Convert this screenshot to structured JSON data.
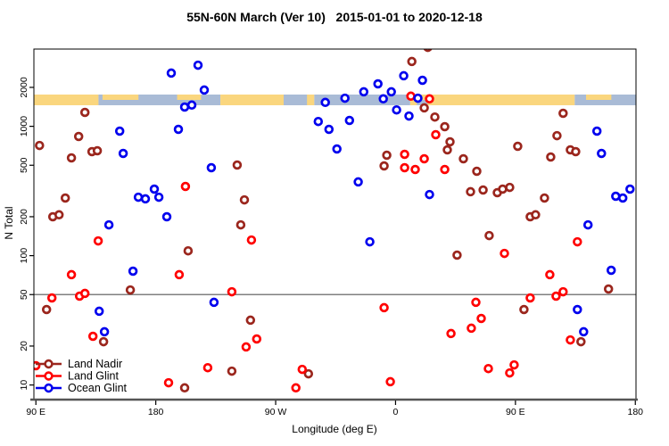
{
  "chart_data": {
    "type": "scatter",
    "title": "55N-60N March (Ver 10)   2015-01-01 to 2020-12-18",
    "xlabel": "Longitude (deg E)",
    "ylabel": "N Total",
    "x_axis": {
      "range": [
        -1.5,
        450.5
      ],
      "tick_positions": [
        0,
        90,
        180,
        270,
        360,
        450
      ],
      "tick_labels": [
        "90 E",
        "180",
        "90 W",
        "0",
        "90 E",
        "180"
      ],
      "note": "axis degrees measured eastward from 90E at left edge"
    },
    "y_axis": {
      "scale": "log",
      "ticks": [
        10,
        20,
        50,
        100,
        200,
        500,
        1000,
        2000
      ],
      "range": [
        7.7,
        3950
      ]
    },
    "threshold_line": {
      "value": 50,
      "color": "#7f7f7f"
    },
    "map_band": {
      "value_range": [
        1455,
        1760
      ],
      "land_color": "#FAD67E",
      "ocean_color": "#A9BBD6",
      "segments": [
        {
          "type": "land",
          "from": -1.5,
          "to": 47
        },
        {
          "type": "ocean",
          "from": 47,
          "to": 138.5
        },
        {
          "type": "land",
          "from": 138.5,
          "to": 209
        },
        {
          "type": "ocean",
          "from": 209,
          "to": 281
        },
        {
          "type": "land",
          "from": 281,
          "to": 404.5
        },
        {
          "type": "ocean",
          "from": 404.5,
          "to": 450.5
        }
      ],
      "patches": [
        {
          "type": "land",
          "from": 50,
          "to": 77,
          "part": "top"
        },
        {
          "type": "land",
          "from": 106,
          "to": 124,
          "part": "top"
        },
        {
          "type": "ocean",
          "from": 186,
          "to": 203.5,
          "part": "full"
        },
        {
          "type": "ocean",
          "from": 286,
          "to": 294,
          "part": "bottom"
        },
        {
          "type": "land",
          "from": 413,
          "to": 432,
          "part": "top"
        }
      ]
    },
    "series": [
      {
        "name": "Land Nadir",
        "color": "#9B261D",
        "points": [
          [
            2.7,
            711
          ],
          [
            36.8,
            1282
          ],
          [
            32.1,
            834
          ],
          [
            42.1,
            637
          ],
          [
            46.1,
            647
          ],
          [
            26.7,
            570
          ],
          [
            22.1,
            279
          ],
          [
            12.7,
            200
          ],
          [
            17.4,
            207
          ],
          [
            114.3,
            109
          ],
          [
            70.9,
            54.3
          ],
          [
            8.0,
            38.3
          ],
          [
            50.8,
            21.6
          ],
          [
            147.1,
            12.8
          ],
          [
            111.7,
            9.5
          ],
          [
            151.1,
            502
          ],
          [
            156.5,
            270
          ],
          [
            153.8,
            173
          ],
          [
            161.1,
            31.7
          ],
          [
            204.6,
            12.2
          ],
          [
            282.2,
            3170
          ],
          [
            294.2,
            4080
          ],
          [
            291.5,
            1390
          ],
          [
            299.5,
            1180
          ],
          [
            263.4,
            598
          ],
          [
            261.4,
            494
          ],
          [
            306.9,
            993
          ],
          [
            310.9,
            759
          ],
          [
            308.9,
            658
          ],
          [
            320.9,
            561
          ],
          [
            331.0,
            449
          ],
          [
            326.3,
            312
          ],
          [
            335.7,
            322
          ],
          [
            346.4,
            307
          ],
          [
            350.4,
            327
          ],
          [
            355.7,
            337
          ],
          [
            361.7,
            701
          ],
          [
            391.2,
            847
          ],
          [
            386.5,
            579
          ],
          [
            401.2,
            658
          ],
          [
            405.2,
            637
          ],
          [
            395.8,
            1260
          ],
          [
            381.8,
            279
          ],
          [
            371.1,
            200
          ],
          [
            375.1,
            207
          ],
          [
            340.3,
            143
          ],
          [
            316.2,
            101
          ],
          [
            429.9,
            55.2
          ],
          [
            366.4,
            38.3
          ],
          [
            409.2,
            21.6
          ]
        ]
      },
      {
        "name": "Land Glint",
        "color": "#FF0000",
        "points": [
          [
            112.3,
            343
          ],
          [
            46.8,
            130
          ],
          [
            26.7,
            71.3
          ],
          [
            107.6,
            71.3
          ],
          [
            32.8,
            48.6
          ],
          [
            36.8,
            51.1
          ],
          [
            12.0,
            47.1
          ],
          [
            42.8,
            23.8
          ],
          [
            129.0,
            13.6
          ],
          [
            99.6,
            10.4
          ],
          [
            147.1,
            52.6
          ],
          [
            161.8,
            132
          ],
          [
            261.4,
            39.6
          ],
          [
            165.8,
            22.7
          ],
          [
            157.8,
            19.7
          ],
          [
            199.9,
            13.2
          ],
          [
            195.2,
            9.5
          ],
          [
            266.1,
            10.6
          ],
          [
            281.5,
            1710
          ],
          [
            295.5,
            1630
          ],
          [
            276.8,
            607
          ],
          [
            291.5,
            561
          ],
          [
            276.8,
            479
          ],
          [
            284.8,
            464
          ],
          [
            300.2,
            861
          ],
          [
            306.9,
            464
          ],
          [
            406.5,
            128
          ],
          [
            351.7,
            104
          ],
          [
            385.8,
            71.3
          ],
          [
            330.3,
            43.6
          ],
          [
            371.1,
            47.1
          ],
          [
            390.5,
            48.6
          ],
          [
            395.8,
            52.6
          ],
          [
            334.3,
            32.7
          ],
          [
            326.9,
            27.5
          ],
          [
            311.6,
            25.0
          ],
          [
            339.7,
            13.4
          ],
          [
            359.0,
            14.3
          ],
          [
            355.7,
            12.4
          ],
          [
            0.0,
            14.1
          ],
          [
            401.2,
            22.3
          ]
        ]
      },
      {
        "name": "Ocean Glint",
        "color": "#0000EE",
        "points": [
          [
            101.6,
            2580
          ],
          [
            121.7,
            2970
          ],
          [
            126.4,
            1910
          ],
          [
            111.7,
            1410
          ],
          [
            117.0,
            1460
          ],
          [
            62.9,
            918
          ],
          [
            107.0,
            948
          ],
          [
            65.5,
            617
          ],
          [
            131.7,
            479
          ],
          [
            76.9,
            283
          ],
          [
            82.2,
            275
          ],
          [
            88.9,
            327
          ],
          [
            92.3,
            283
          ],
          [
            98.3,
            200
          ],
          [
            54.8,
            173
          ],
          [
            72.9,
            75.9
          ],
          [
            47.5,
            37.2
          ],
          [
            51.5,
            25.8
          ],
          [
            133.7,
            43.6
          ],
          [
            217.3,
            1530
          ],
          [
            232.0,
            1650
          ],
          [
            226.0,
            668
          ],
          [
            235.4,
            1110
          ],
          [
            212.0,
            1090
          ],
          [
            220.0,
            948
          ],
          [
            242.0,
            372
          ],
          [
            250.7,
            128
          ],
          [
            276.1,
            2460
          ],
          [
            290.2,
            2270
          ],
          [
            256.8,
            2130
          ],
          [
            246.1,
            1850
          ],
          [
            266.8,
            1850
          ],
          [
            260.8,
            1630
          ],
          [
            286.8,
            1650
          ],
          [
            270.8,
            1340
          ],
          [
            280.1,
            1200
          ],
          [
            295.5,
            297
          ],
          [
            421.2,
            918
          ],
          [
            424.6,
            617
          ],
          [
            435.3,
            288
          ],
          [
            440.6,
            279
          ],
          [
            446.0,
            327
          ],
          [
            414.5,
            173
          ],
          [
            431.9,
            77.1
          ],
          [
            406.5,
            38.3
          ],
          [
            411.2,
            25.8
          ]
        ]
      }
    ],
    "legend": {
      "position": "bottom-left"
    },
    "style": {
      "axis_color": "#000000",
      "bottom_axis_color": "#555555",
      "marker_fill": "#FFFFFF"
    }
  }
}
